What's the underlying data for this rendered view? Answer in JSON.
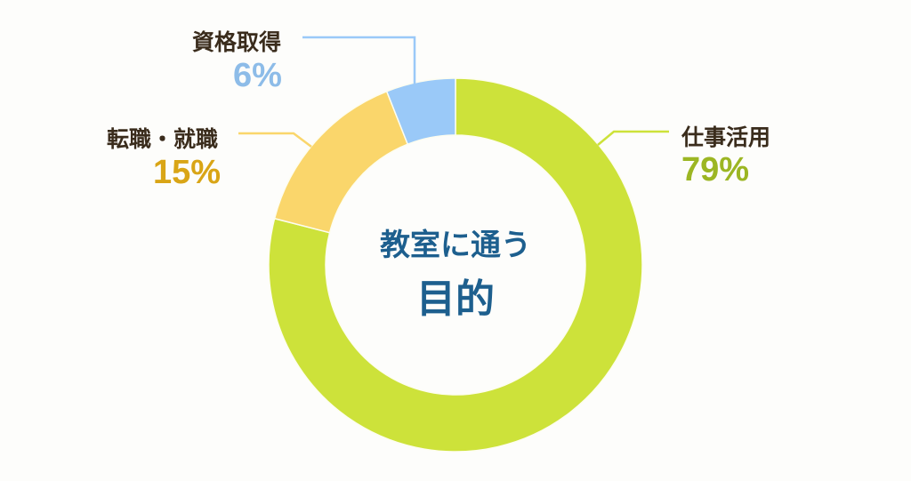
{
  "chart_data": {
    "type": "pie",
    "donut": true,
    "center_title": [
      "教室に通う",
      "目的"
    ],
    "slices": [
      {
        "label": "仕事活用",
        "value": 79,
        "value_label": "79%",
        "color": "#cde23a",
        "label_color": "#9cb623"
      },
      {
        "label": "転職・就職",
        "value": 15,
        "value_label": "15%",
        "color": "#fad66b",
        "label_color": "#d9a516"
      },
      {
        "label": "資格取得",
        "value": 6,
        "value_label": "6%",
        "color": "#9ac9f8",
        "label_color": "#8dbce8"
      }
    ],
    "start": "12 o'clock",
    "direction": "clockwise"
  }
}
